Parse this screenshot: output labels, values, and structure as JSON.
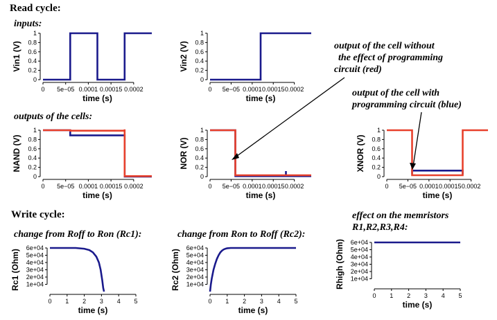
{
  "labels": {
    "read_cycle": "Read cycle:",
    "inputs": "inputs:",
    "outputs": "outputs of the cells:",
    "write_cycle": "Write cycle:",
    "rc1_title": "change from Roff to Ron (Rc1):",
    "rc2_title": "change from Ron to Roff (Rc2):",
    "memristor_title_1": "effect on the memristors",
    "memristor_title_2": "R1,R2,R3,R4:",
    "note_red_1": "output of the cell without",
    "note_red_2": "the effect of programming",
    "note_red_3": "circuit (red)",
    "note_blue_1": "output of the cell with",
    "note_blue_2": "programming circuit (blue)"
  },
  "colors": {
    "blue": "#1a1a8c",
    "red": "#e8412c",
    "axis": "#000000"
  },
  "chart_data": [
    {
      "id": "vin1",
      "type": "line",
      "xlabel": "time (s)",
      "ylabel": "Vin1 (V)",
      "xlim": [
        0,
        0.00024
      ],
      "ylim": [
        0,
        1
      ],
      "xticks": [
        0,
        5e-05,
        0.0001,
        0.00015,
        0.0002
      ],
      "xticklabels": [
        "0",
        "5e−05",
        "0.0001",
        "0.00015",
        "0.0002"
      ],
      "yticks": [
        0,
        0.2,
        0.4,
        0.6,
        0.8,
        1
      ],
      "yticklabels": [
        "0",
        "0.2",
        "0.4",
        "0.6",
        "0.8",
        "1"
      ],
      "series": [
        {
          "color": "blue",
          "x": [
            0,
            6e-05,
            6e-05,
            0.00012,
            0.00012,
            0.00018,
            0.00018,
            0.00024
          ],
          "y": [
            0,
            0,
            1,
            1,
            0,
            0,
            1,
            1
          ]
        }
      ]
    },
    {
      "id": "vin2",
      "type": "line",
      "xlabel": "time (s)",
      "ylabel": "Vin2 (V)",
      "xlim": [
        0,
        0.00024
      ],
      "ylim": [
        0,
        1
      ],
      "xticks": [
        0,
        5e-05,
        0.0001,
        0.00015,
        0.0002
      ],
      "xticklabels": [
        "0",
        "5e−05",
        "0.0001",
        "0.00015",
        "0.0002"
      ],
      "yticks": [
        0,
        0.2,
        0.4,
        0.6,
        0.8,
        1
      ],
      "yticklabels": [
        "0",
        "0.2",
        "0.4",
        "0.6",
        "0.8",
        "1"
      ],
      "series": [
        {
          "color": "blue",
          "x": [
            0,
            0.00012,
            0.00012,
            0.00024
          ],
          "y": [
            0,
            0,
            1,
            1
          ]
        }
      ]
    },
    {
      "id": "nand",
      "type": "line",
      "xlabel": "time (s)",
      "ylabel": "NAND (V)",
      "xlim": [
        0,
        0.00024
      ],
      "ylim": [
        0,
        1
      ],
      "xticks": [
        0,
        5e-05,
        0.0001,
        0.00015,
        0.0002
      ],
      "xticklabels": [
        "0",
        "5e−05",
        "0.0001",
        "0.00015",
        "0.0002"
      ],
      "yticks": [
        0,
        0.2,
        0.4,
        0.6,
        0.8,
        1
      ],
      "yticklabels": [
        "0",
        "0.2",
        "0.4",
        "0.6",
        "0.8",
        "1"
      ],
      "series": [
        {
          "color": "blue",
          "x": [
            0,
            6e-05,
            6e-05,
            0.00018,
            0.00018,
            0.00024
          ],
          "y": [
            1,
            1,
            0.89,
            0.89,
            0,
            0
          ]
        },
        {
          "color": "red",
          "x": [
            0,
            6e-05,
            6e-05,
            0.00018,
            0.00018,
            0.00018,
            0.00018,
            0.00024
          ],
          "y": [
            1,
            1,
            0.99,
            0.99,
            1.02,
            1.02,
            0.01,
            0.01
          ]
        }
      ]
    },
    {
      "id": "nor",
      "type": "line",
      "xlabel": "time (s)",
      "ylabel": "NOR (V)",
      "xlim": [
        0,
        0.00024
      ],
      "ylim": [
        0,
        1
      ],
      "xticks": [
        0,
        5e-05,
        0.0001,
        0.00015,
        0.0002
      ],
      "xticklabels": [
        "0",
        "5e−05",
        "0.0001",
        "0.00015",
        "0.0002"
      ],
      "yticks": [
        0,
        0.2,
        0.4,
        0.6,
        0.8,
        1
      ],
      "yticklabels": [
        "0",
        "0.2",
        "0.4",
        "0.6",
        "0.8",
        "1"
      ],
      "series": [
        {
          "color": "blue",
          "x": [
            0,
            6e-05,
            6e-05,
            0.00018,
            0.00018,
            0.00018,
            0.00018,
            0.00024
          ],
          "y": [
            1,
            1,
            0.01,
            0.01,
            0.12,
            0.12,
            0.01,
            0.01
          ]
        },
        {
          "color": "red",
          "x": [
            0,
            6e-05,
            6e-05,
            0.00024
          ],
          "y": [
            1,
            1,
            0.03,
            0.03
          ]
        }
      ]
    },
    {
      "id": "xnor",
      "type": "line",
      "xlabel": "time (s)",
      "ylabel": "XNOR (V)",
      "xlim": [
        0,
        0.00024
      ],
      "ylim": [
        0,
        1
      ],
      "xticks": [
        0,
        5e-05,
        0.0001,
        0.00015,
        0.0002
      ],
      "xticklabels": [
        "0",
        "5e−05",
        "0.0001",
        "0.00015",
        "0.0002"
      ],
      "yticks": [
        0,
        0.2,
        0.4,
        0.6,
        0.8,
        1
      ],
      "yticklabels": [
        "0",
        "0.2",
        "0.4",
        "0.6",
        "0.8",
        "1"
      ],
      "series": [
        {
          "color": "blue",
          "x": [
            6e-05,
            6e-05,
            0.00018,
            0.00018
          ],
          "y": [
            0.05,
            0.13,
            0.13,
            0.05
          ]
        },
        {
          "color": "red",
          "x": [
            0,
            6e-05,
            6e-05,
            0.00018,
            0.00018,
            0.00024
          ],
          "y": [
            1,
            1,
            0.03,
            0.03,
            1,
            1
          ]
        }
      ]
    },
    {
      "id": "rc1",
      "type": "line",
      "xlabel": "time (s)",
      "ylabel": "Rc1 (Ohm)",
      "xlim": [
        0,
        5
      ],
      "ylim": [
        0,
        60000
      ],
      "xticks": [
        0,
        1,
        2,
        3,
        4,
        5
      ],
      "xticklabels": [
        "0",
        "1",
        "2",
        "3",
        "4",
        "5"
      ],
      "yticks": [
        10000,
        20000,
        30000,
        40000,
        50000,
        60000
      ],
      "yticklabels": [
        "1e+04",
        "2e+04",
        "3e+04",
        "4e+04",
        "5e+04",
        "6e+04"
      ],
      "series": [
        {
          "color": "blue",
          "x": [
            0,
            1.5,
            2,
            2.3,
            2.5,
            2.7,
            2.85,
            2.95,
            3.05,
            3.1,
            3.15
          ],
          "y": [
            60000,
            60000,
            59000,
            57000,
            54000,
            48000,
            40000,
            30000,
            15000,
            5000,
            0
          ]
        }
      ]
    },
    {
      "id": "rc2",
      "type": "line",
      "xlabel": "time (s)",
      "ylabel": "Rc2 (Ohm)",
      "xlim": [
        0,
        5
      ],
      "ylim": [
        0,
        60000
      ],
      "xticks": [
        0,
        1,
        2,
        3,
        4,
        5
      ],
      "xticklabels": [
        "0",
        "1",
        "2",
        "3",
        "4",
        "5"
      ],
      "yticks": [
        10000,
        20000,
        30000,
        40000,
        50000,
        60000
      ],
      "yticklabels": [
        "1e+04",
        "2e+04",
        "3e+04",
        "4e+04",
        "5e+04",
        "6e+04"
      ],
      "series": [
        {
          "color": "blue",
          "x": [
            0,
            0.05,
            0.1,
            0.2,
            0.3,
            0.4,
            0.5,
            0.6,
            0.7,
            0.8,
            0.9,
            1.0,
            1.2,
            5
          ],
          "y": [
            0,
            10000,
            18000,
            30000,
            38000,
            45000,
            50000,
            54000,
            56500,
            58000,
            59000,
            59600,
            60000,
            60000
          ]
        }
      ]
    },
    {
      "id": "rhigh",
      "type": "line",
      "xlabel": "time (s)",
      "ylabel": "Rhigh (Ohm)",
      "xlim": [
        0,
        5
      ],
      "ylim": [
        0,
        60000
      ],
      "xticks": [
        0,
        1,
        2,
        3,
        4,
        5
      ],
      "xticklabels": [
        "0",
        "1",
        "2",
        "3",
        "4",
        "5"
      ],
      "yticks": [
        10000,
        20000,
        30000,
        40000,
        50000,
        60000
      ],
      "yticklabels": [
        "1e+04",
        "2e+04",
        "3e+04",
        "4e+04",
        "5e+04",
        "6e+04"
      ],
      "series": [
        {
          "color": "blue",
          "x": [
            0,
            5
          ],
          "y": [
            60000,
            60000
          ]
        }
      ]
    }
  ]
}
